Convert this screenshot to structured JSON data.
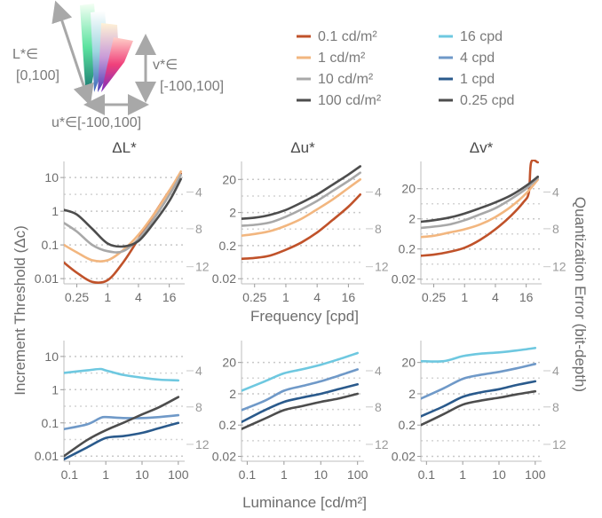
{
  "colorspace": {
    "l_label": "L*∈",
    "l_range": "[0,100]",
    "v_label": "v*∈",
    "v_range": "[-100,100]",
    "u_label": "u*∈[-100,100]"
  },
  "legend_luminance": [
    {
      "label": "0.1 cd/m²",
      "color": "#c0522a"
    },
    {
      "label": "1 cd/m²",
      "color": "#f2b67f"
    },
    {
      "label": "10 cd/m²",
      "color": "#a8a8a8"
    },
    {
      "label": "100 cd/m²",
      "color": "#4d4d4d"
    }
  ],
  "legend_frequency": [
    {
      "label": "16 cpd",
      "color": "#6ec8e0"
    },
    {
      "label": "4 cpd",
      "color": "#6f99c8"
    },
    {
      "label": "1 cpd",
      "color": "#2a5a8c"
    },
    {
      "label": "0.25 cpd",
      "color": "#4d4d4d"
    }
  ],
  "labels": {
    "y_left": "Increment Threshold (Δc)",
    "y_right": "Quantization Error (bit-depth)",
    "x_top": "Frequency [cpd]",
    "x_bottom": "Luminance [cd/m²]"
  },
  "chart_data": [
    {
      "type": "line",
      "title": "ΔL*",
      "x_scale": "log",
      "y_scale": "log",
      "xlabel": "",
      "xlim": [
        0.14,
        32
      ],
      "ylim": [
        0.007,
        30
      ],
      "x_ticks": [
        "0.25",
        "1",
        "4",
        "16"
      ],
      "x_tick_values": [
        0.25,
        1,
        4,
        16
      ],
      "y_ticks": [
        "0.01",
        "0.1",
        "1",
        "10"
      ],
      "y_tick_values": [
        0.01,
        0.1,
        1,
        10
      ],
      "right_ticks": [
        "4",
        "8",
        "12"
      ],
      "series": [
        {
          "name": "0.1 cd/m²",
          "color": "#c0522a",
          "x": [
            0.14,
            0.25,
            0.5,
            1,
            2,
            4,
            8,
            16,
            27
          ],
          "y": [
            0.03,
            0.015,
            0.008,
            0.009,
            0.03,
            0.15,
            0.8,
            4,
            13
          ]
        },
        {
          "name": "1 cd/m²",
          "color": "#f2b67f",
          "x": [
            0.14,
            0.25,
            0.5,
            1,
            2,
            4,
            8,
            16,
            27
          ],
          "y": [
            0.1,
            0.06,
            0.035,
            0.035,
            0.07,
            0.2,
            0.8,
            4,
            15
          ]
        },
        {
          "name": "10 cd/m²",
          "color": "#a8a8a8",
          "x": [
            0.14,
            0.25,
            0.5,
            1,
            2,
            4,
            8,
            16,
            27
          ],
          "y": [
            0.45,
            0.25,
            0.1,
            0.065,
            0.065,
            0.15,
            0.6,
            3,
            12
          ]
        },
        {
          "name": "100 cd/m²",
          "color": "#4d4d4d",
          "x": [
            0.14,
            0.25,
            0.5,
            1,
            2,
            4,
            8,
            16,
            27
          ],
          "y": [
            1.1,
            0.8,
            0.3,
            0.11,
            0.09,
            0.13,
            0.45,
            2,
            9
          ]
        }
      ]
    },
    {
      "type": "line",
      "title": "Δu*",
      "x_scale": "log",
      "y_scale": "log",
      "xlabel": "",
      "xlim": [
        0.14,
        32
      ],
      "ylim": [
        0.014,
        70
      ],
      "x_ticks": [
        "0.25",
        "1",
        "4",
        "16"
      ],
      "x_tick_values": [
        0.25,
        1,
        4,
        16
      ],
      "y_ticks": [
        "0.02",
        "0.2",
        "2",
        "20"
      ],
      "y_tick_values": [
        0.02,
        0.2,
        2,
        20
      ],
      "right_ticks": [
        "4",
        "8",
        "12"
      ],
      "series": [
        {
          "name": "0.1 cd/m²",
          "color": "#c0522a",
          "x": [
            0.14,
            0.25,
            0.5,
            1,
            2,
            4,
            8,
            16,
            27
          ],
          "y": [
            0.08,
            0.085,
            0.1,
            0.15,
            0.25,
            0.5,
            1.2,
            3,
            7
          ]
        },
        {
          "name": "1 cd/m²",
          "color": "#f2b67f",
          "x": [
            0.14,
            0.25,
            0.5,
            1,
            2,
            4,
            8,
            16,
            27
          ],
          "y": [
            0.4,
            0.45,
            0.55,
            0.8,
            1.3,
            2.5,
            5,
            11,
            20
          ]
        },
        {
          "name": "10 cd/m²",
          "color": "#a8a8a8",
          "x": [
            0.14,
            0.25,
            0.5,
            1,
            2,
            4,
            8,
            16,
            27
          ],
          "y": [
            0.8,
            0.85,
            1.0,
            1.5,
            2.5,
            4.5,
            9,
            18,
            32
          ]
        },
        {
          "name": "100 cd/m²",
          "color": "#4d4d4d",
          "x": [
            0.14,
            0.25,
            0.5,
            1,
            2,
            4,
            8,
            16,
            27
          ],
          "y": [
            1.3,
            1.4,
            1.7,
            2.4,
            4,
            7,
            14,
            28,
            50
          ]
        }
      ]
    },
    {
      "type": "line",
      "title": "Δv*",
      "x_scale": "log",
      "y_scale": "log",
      "xlabel": "",
      "xlim": [
        0.14,
        32
      ],
      "ylim": [
        0.014,
        160
      ],
      "x_ticks": [
        "0.25",
        "1",
        "4",
        "16"
      ],
      "x_tick_values": [
        0.25,
        1,
        4,
        16
      ],
      "y_ticks": [
        "0.02",
        "0.2",
        "2",
        "20"
      ],
      "y_tick_values": [
        0.02,
        0.2,
        2,
        20
      ],
      "right_ticks": [
        "4",
        "8",
        "12"
      ],
      "series": [
        {
          "name": "0.1 cd/m²",
          "color": "#c0522a",
          "x": [
            0.14,
            0.25,
            0.5,
            1,
            2,
            4,
            8,
            14,
            18,
            20,
            27
          ],
          "y": [
            0.12,
            0.13,
            0.16,
            0.22,
            0.4,
            0.9,
            2.5,
            7,
            15,
            150,
            150
          ]
        },
        {
          "name": "1 cd/m²",
          "color": "#f2b67f",
          "x": [
            0.14,
            0.25,
            0.5,
            1,
            2,
            4,
            8,
            16,
            27
          ],
          "y": [
            0.5,
            0.55,
            0.7,
            0.9,
            1.3,
            2.3,
            5,
            14,
            40
          ]
        },
        {
          "name": "10 cd/m²",
          "color": "#a8a8a8",
          "x": [
            0.14,
            0.25,
            0.5,
            1,
            2,
            4,
            8,
            16,
            27
          ],
          "y": [
            1.0,
            1.1,
            1.3,
            1.8,
            2.8,
            4.5,
            9,
            20,
            45
          ]
        },
        {
          "name": "100 cd/m²",
          "color": "#4d4d4d",
          "x": [
            0.14,
            0.25,
            0.5,
            1,
            2,
            4,
            8,
            16,
            27
          ],
          "y": [
            1.6,
            1.8,
            2.2,
            3,
            4.5,
            7,
            12,
            25,
            50
          ]
        }
      ]
    },
    {
      "type": "line",
      "title": "",
      "x_scale": "log",
      "y_scale": "log",
      "xlabel": "",
      "xlim": [
        0.07,
        150
      ],
      "ylim": [
        0.007,
        30
      ],
      "x_ticks": [
        "0.1",
        "1",
        "10",
        "100"
      ],
      "x_tick_values": [
        0.1,
        1,
        10,
        100
      ],
      "y_ticks": [
        "0.01",
        "0.1",
        "1",
        "10"
      ],
      "y_tick_values": [
        0.01,
        0.1,
        1,
        10
      ],
      "right_ticks": [
        "4",
        "8",
        "12"
      ],
      "series": [
        {
          "name": "16 cpd",
          "color": "#6ec8e0",
          "x": [
            0.07,
            0.3,
            0.7,
            1,
            3,
            10,
            30,
            100
          ],
          "y": [
            3.2,
            3.8,
            4.2,
            3.8,
            2.8,
            2.3,
            2.0,
            1.9
          ]
        },
        {
          "name": "4 cpd",
          "color": "#6f99c8",
          "x": [
            0.07,
            0.3,
            0.7,
            1,
            3,
            10,
            30,
            100
          ],
          "y": [
            0.065,
            0.09,
            0.14,
            0.15,
            0.14,
            0.14,
            0.15,
            0.17
          ]
        },
        {
          "name": "1 cpd",
          "color": "#2a5a8c",
          "x": [
            0.07,
            0.3,
            1,
            3,
            10,
            30,
            100
          ],
          "y": [
            0.008,
            0.018,
            0.035,
            0.04,
            0.05,
            0.07,
            0.1
          ]
        },
        {
          "name": "0.25 cpd",
          "color": "#4d4d4d",
          "x": [
            0.07,
            0.3,
            1,
            3,
            10,
            30,
            100
          ],
          "y": [
            0.01,
            0.03,
            0.06,
            0.1,
            0.18,
            0.3,
            0.6
          ]
        }
      ]
    },
    {
      "type": "line",
      "title": "",
      "x_scale": "log",
      "y_scale": "log",
      "xlabel": "",
      "xlim": [
        0.07,
        150
      ],
      "ylim": [
        0.014,
        100
      ],
      "x_ticks": [
        "0.1",
        "1",
        "10",
        "100"
      ],
      "x_tick_values": [
        0.1,
        1,
        10,
        100
      ],
      "y_ticks": [
        "0.02",
        "0.2",
        "2",
        "20"
      ],
      "y_tick_values": [
        0.02,
        0.2,
        2,
        20
      ],
      "right_ticks": [
        "4",
        "8",
        "12"
      ],
      "series": [
        {
          "name": "16 cpd",
          "color": "#6ec8e0",
          "x": [
            0.07,
            0.3,
            1,
            3,
            10,
            30,
            100
          ],
          "y": [
            2.5,
            5,
            9,
            12,
            17,
            25,
            40
          ]
        },
        {
          "name": "4 cpd",
          "color": "#6f99c8",
          "x": [
            0.07,
            0.3,
            1,
            3,
            10,
            30,
            100
          ],
          "y": [
            0.6,
            1.2,
            2.5,
            3.5,
            5,
            7.5,
            12
          ]
        },
        {
          "name": "1 cpd",
          "color": "#2a5a8c",
          "x": [
            0.07,
            0.3,
            1,
            3,
            10,
            30,
            100
          ],
          "y": [
            0.25,
            0.6,
            1.1,
            1.5,
            2,
            2.8,
            4
          ]
        },
        {
          "name": "0.25 cpd",
          "color": "#4d4d4d",
          "x": [
            0.07,
            0.3,
            1,
            3,
            10,
            30,
            100
          ],
          "y": [
            0.15,
            0.32,
            0.6,
            0.8,
            1.1,
            1.4,
            2
          ]
        }
      ]
    },
    {
      "type": "line",
      "title": "",
      "x_scale": "log",
      "y_scale": "log",
      "xlabel": "",
      "xlim": [
        0.07,
        150
      ],
      "ylim": [
        0.014,
        100
      ],
      "x_ticks": [
        "0.1",
        "1",
        "10",
        "100"
      ],
      "x_tick_values": [
        0.1,
        1,
        10,
        100
      ],
      "y_ticks": [
        "0.02",
        "0.2",
        "2",
        "20"
      ],
      "y_tick_values": [
        0.02,
        0.2,
        2,
        20
      ],
      "right_ticks": [
        "4",
        "8",
        "12"
      ],
      "series": [
        {
          "name": "16 cpd",
          "color": "#6ec8e0",
          "x": [
            0.07,
            0.3,
            1,
            3,
            10,
            30,
            100
          ],
          "y": [
            22,
            22,
            32,
            38,
            42,
            48,
            58
          ]
        },
        {
          "name": "4 cpd",
          "color": "#6f99c8",
          "x": [
            0.07,
            0.3,
            1,
            3,
            10,
            30,
            100
          ],
          "y": [
            1.4,
            3,
            6,
            8,
            10,
            13,
            18
          ]
        },
        {
          "name": "1 cpd",
          "color": "#2a5a8c",
          "x": [
            0.07,
            0.3,
            1,
            3,
            10,
            30,
            100
          ],
          "y": [
            0.38,
            0.8,
            1.6,
            2.2,
            2.8,
            3.8,
            5
          ]
        },
        {
          "name": "0.25 cpd",
          "color": "#4d4d4d",
          "x": [
            0.07,
            0.3,
            1,
            3,
            10,
            30,
            100
          ],
          "y": [
            0.2,
            0.45,
            0.9,
            1.2,
            1.5,
            1.9,
            2.4
          ]
        }
      ]
    }
  ]
}
